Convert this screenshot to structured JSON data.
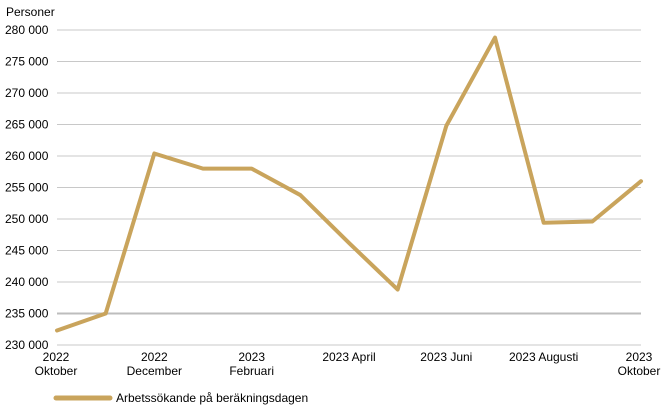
{
  "chart_data": {
    "type": "line",
    "ylabel": "Personer",
    "ylim": [
      230000,
      280000
    ],
    "yticks": [
      {
        "value": 280000,
        "label": "280 000"
      },
      {
        "value": 275000,
        "label": "275 000"
      },
      {
        "value": 270000,
        "label": "270 000"
      },
      {
        "value": 265000,
        "label": "265 000"
      },
      {
        "value": 260000,
        "label": "260 000"
      },
      {
        "value": 255000,
        "label": "255 000"
      },
      {
        "value": 250000,
        "label": "250 000"
      },
      {
        "value": 245000,
        "label": "245 000"
      },
      {
        "value": 240000,
        "label": "240 000"
      },
      {
        "value": 235000,
        "label": "235 000"
      },
      {
        "value": 230000,
        "label": "230 000"
      }
    ],
    "categories": [
      "2022-10",
      "2022-11",
      "2022-12",
      "2023-01",
      "2023-02",
      "2023-03",
      "2023-04",
      "2023-05",
      "2023-06",
      "2023-07",
      "2023-08",
      "2023-09",
      "2023-10"
    ],
    "xticks": [
      {
        "index": 0,
        "lines": [
          "2022",
          "Oktober"
        ]
      },
      {
        "index": 2,
        "lines": [
          "2022",
          "December"
        ]
      },
      {
        "index": 4,
        "lines": [
          "2023",
          "Februari"
        ]
      },
      {
        "index": 6,
        "lines": [
          "2023 April"
        ]
      },
      {
        "index": 8,
        "lines": [
          "2023 Juni"
        ]
      },
      {
        "index": 10,
        "lines": [
          "2023 Augusti"
        ]
      },
      {
        "index": 12,
        "lines": [
          "2023",
          "Oktober"
        ]
      }
    ],
    "series": [
      {
        "name": "Arbetssökande på beräkningsdagen",
        "color": "#c9a45c",
        "values": [
          232300,
          235000,
          260400,
          258000,
          258000,
          253800,
          246200,
          238800,
          264800,
          278800,
          249400,
          249600,
          256000
        ]
      }
    ],
    "grid": true,
    "legend_position": "bottom-left"
  }
}
